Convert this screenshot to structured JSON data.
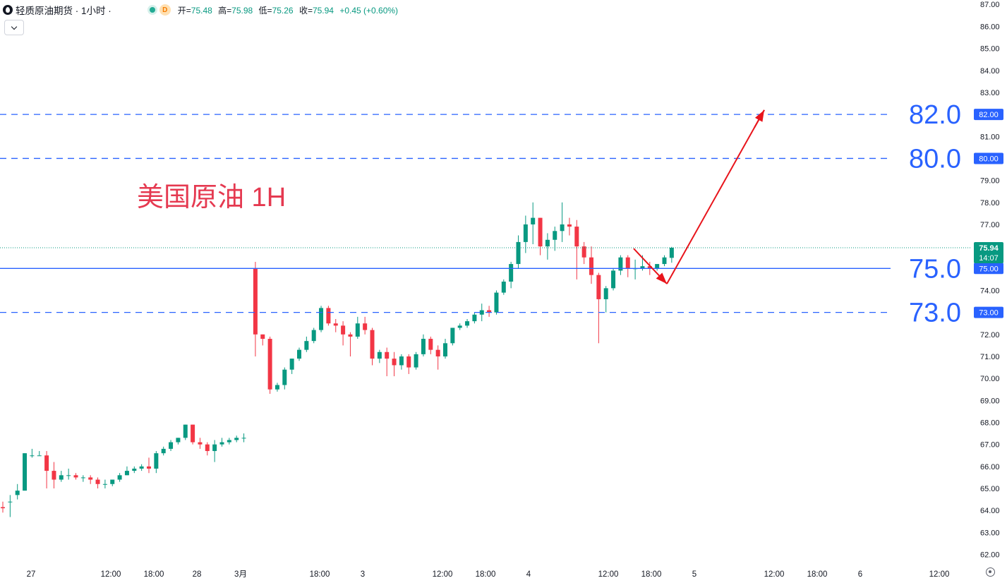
{
  "header": {
    "symbol": "轻质原油期货 · 1小时 ·",
    "interval_badge": "D",
    "open_label": "开=",
    "open_value": "75.48",
    "high_label": "高=",
    "high_value": "75.98",
    "low_label": "低=",
    "low_value": "75.26",
    "close_label": "收=",
    "close_value": "75.94",
    "change_value": "+0.45 (+0.60%)"
  },
  "chart_data": {
    "type": "candlestick",
    "title": "美国原油 1H",
    "ylim": [
      61.6,
      87.2
    ],
    "y_ticks": [
      "62.00",
      "63.00",
      "64.00",
      "65.00",
      "66.00",
      "67.00",
      "68.00",
      "69.00",
      "70.00",
      "71.00",
      "72.00",
      "73.00",
      "74.00",
      "75.00",
      "76.00",
      "77.00",
      "78.00",
      "79.00",
      "80.00",
      "81.00",
      "82.00",
      "83.00",
      "84.00",
      "85.00",
      "86.00",
      "87.00"
    ],
    "x_labels": [
      "27",
      "12:00",
      "18:00",
      "28",
      "3月",
      "18:00",
      "3",
      "12:00",
      "18:00",
      "4",
      "12:00",
      "18:00",
      "5",
      "12:00",
      "18:00",
      "6",
      "12:00"
    ],
    "last_price_label": "75.94",
    "countdown_label": "14:07",
    "current_price": 75.94,
    "levels": [
      {
        "value": 82.0,
        "label": "82.0",
        "axis_label": "82.00",
        "style": "dashed"
      },
      {
        "value": 80.0,
        "label": "80.0",
        "axis_label": "80.00",
        "style": "dashed"
      },
      {
        "value": 75.0,
        "label": "75.0",
        "axis_label": "75.00",
        "style": "solid"
      },
      {
        "value": 73.0,
        "label": "73.0",
        "axis_label": "73.00",
        "style": "dashed"
      }
    ],
    "projection": [
      75.9,
      74.3,
      82.2
    ],
    "candles": [
      [
        64.15,
        64.4,
        64.1,
        63.9
      ],
      [
        64.4,
        64.7,
        64.4,
        63.7
      ],
      [
        64.7,
        65.2,
        64.9,
        64.5
      ],
      [
        64.9,
        66.6,
        66.6,
        64.9
      ],
      [
        66.5,
        66.8,
        66.5,
        66.4
      ],
      [
        66.5,
        66.7,
        66.5,
        66.5
      ],
      [
        66.5,
        66.7,
        65.8,
        65.0
      ],
      [
        65.8,
        66.2,
        65.4,
        65.0
      ],
      [
        65.4,
        65.8,
        65.6,
        65.3
      ],
      [
        65.6,
        65.9,
        65.6,
        65.4
      ],
      [
        65.6,
        65.7,
        65.5,
        65.4
      ],
      [
        65.5,
        65.6,
        65.5,
        65.3
      ],
      [
        65.5,
        65.6,
        65.4,
        65.2
      ],
      [
        65.4,
        65.5,
        65.2,
        65.0
      ],
      [
        65.2,
        65.4,
        65.2,
        65.0
      ],
      [
        65.2,
        65.4,
        65.4,
        65.1
      ],
      [
        65.4,
        65.7,
        65.6,
        65.3
      ],
      [
        65.6,
        66.0,
        65.8,
        65.6
      ],
      [
        65.8,
        66.0,
        65.9,
        65.7
      ],
      [
        65.9,
        66.1,
        66.0,
        65.8
      ],
      [
        66.0,
        66.4,
        65.9,
        65.7
      ],
      [
        65.9,
        66.7,
        66.6,
        65.7
      ],
      [
        66.6,
        66.9,
        66.8,
        66.5
      ],
      [
        66.8,
        67.2,
        67.1,
        66.7
      ],
      [
        67.1,
        67.3,
        67.3,
        67.0
      ],
      [
        67.3,
        67.9,
        67.9,
        67.2
      ],
      [
        67.9,
        67.9,
        67.1,
        67.0
      ],
      [
        67.1,
        67.3,
        67.0,
        66.8
      ],
      [
        67.0,
        67.1,
        66.7,
        66.5
      ],
      [
        66.7,
        67.2,
        67.0,
        66.2
      ],
      [
        67.0,
        67.3,
        67.1,
        66.9
      ],
      [
        67.1,
        67.3,
        67.2,
        67.0
      ],
      [
        67.2,
        67.4,
        67.3,
        67.1
      ],
      [
        67.3,
        67.5,
        67.3,
        67.1
      ],
      [
        75.0,
        75.3,
        72.0,
        71.0
      ],
      [
        72.0,
        72.0,
        71.8,
        71.5
      ],
      [
        71.8,
        71.9,
        69.5,
        69.3
      ],
      [
        69.5,
        69.8,
        69.7,
        69.4
      ],
      [
        69.7,
        70.5,
        70.4,
        69.5
      ],
      [
        70.4,
        70.9,
        70.9,
        70.2
      ],
      [
        70.9,
        71.4,
        71.3,
        70.8
      ],
      [
        71.3,
        71.9,
        71.7,
        71.2
      ],
      [
        71.7,
        72.3,
        72.2,
        71.6
      ],
      [
        72.2,
        73.3,
        73.2,
        72.1
      ],
      [
        73.2,
        73.3,
        72.5,
        72.4
      ],
      [
        72.5,
        72.7,
        72.4,
        72.1
      ],
      [
        72.4,
        72.6,
        72.0,
        71.5
      ],
      [
        72.0,
        72.1,
        71.9,
        71.0
      ],
      [
        71.9,
        72.8,
        72.5,
        71.8
      ],
      [
        72.5,
        72.8,
        72.2,
        72.0
      ],
      [
        72.2,
        72.3,
        70.9,
        70.6
      ],
      [
        70.9,
        71.3,
        71.2,
        70.7
      ],
      [
        71.2,
        71.4,
        70.9,
        70.1
      ],
      [
        70.9,
        71.2,
        70.6,
        70.1
      ],
      [
        70.6,
        71.1,
        71.0,
        70.4
      ],
      [
        71.0,
        71.1,
        70.5,
        70.2
      ],
      [
        70.5,
        71.2,
        71.1,
        70.4
      ],
      [
        71.1,
        72.0,
        71.8,
        71.0
      ],
      [
        71.8,
        71.9,
        71.3,
        71.1
      ],
      [
        71.3,
        71.5,
        71.0,
        70.4
      ],
      [
        71.0,
        71.8,
        71.6,
        70.9
      ],
      [
        71.6,
        72.3,
        72.3,
        71.5
      ],
      [
        72.3,
        72.5,
        72.4,
        72.2
      ],
      [
        72.4,
        72.7,
        72.6,
        72.3
      ],
      [
        72.6,
        73.0,
        72.9,
        72.5
      ],
      [
        72.9,
        73.4,
        73.1,
        72.6
      ],
      [
        73.1,
        73.3,
        73.0,
        72.8
      ],
      [
        73.0,
        74.0,
        73.9,
        72.9
      ],
      [
        73.9,
        74.5,
        74.4,
        73.8
      ],
      [
        74.4,
        75.3,
        75.2,
        74.1
      ],
      [
        75.2,
        76.5,
        76.2,
        75.0
      ],
      [
        76.2,
        77.4,
        77.0,
        75.7
      ],
      [
        77.0,
        78.0,
        77.3,
        76.1
      ],
      [
        77.3,
        77.3,
        76.0,
        75.6
      ],
      [
        76.0,
        76.6,
        76.3,
        75.4
      ],
      [
        76.3,
        76.9,
        76.7,
        75.8
      ],
      [
        76.7,
        78.0,
        77.0,
        76.2
      ],
      [
        77.0,
        77.3,
        76.9,
        76.5
      ],
      [
        76.9,
        77.2,
        76.0,
        74.5
      ],
      [
        76.0,
        76.2,
        75.5,
        75.2
      ],
      [
        75.5,
        76.0,
        74.7,
        74.3
      ],
      [
        74.7,
        74.8,
        73.6,
        71.6
      ],
      [
        73.6,
        74.2,
        74.1,
        73.0
      ],
      [
        74.1,
        75.0,
        74.9,
        74.0
      ],
      [
        74.9,
        75.6,
        75.5,
        74.7
      ],
      [
        75.5,
        75.6,
        75.0,
        74.6
      ],
      [
        75.0,
        75.4,
        75.0,
        74.5
      ],
      [
        75.0,
        75.6,
        75.1,
        74.9
      ],
      [
        75.1,
        75.3,
        75.0,
        74.7
      ],
      [
        75.0,
        75.2,
        75.2,
        74.9
      ],
      [
        75.2,
        75.6,
        75.5,
        75.1
      ],
      [
        75.48,
        75.98,
        75.94,
        75.26
      ]
    ]
  }
}
